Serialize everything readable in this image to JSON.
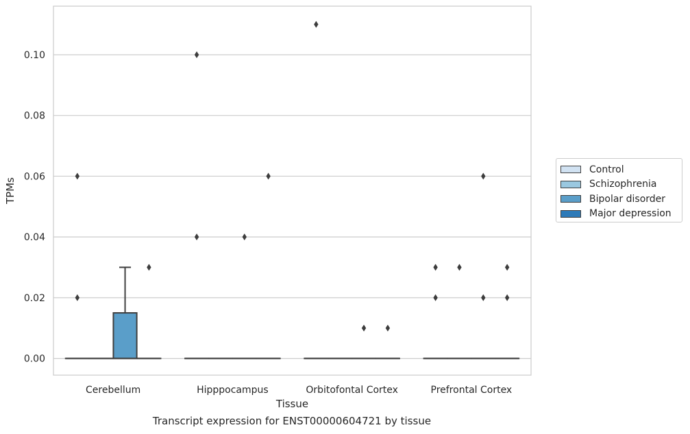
{
  "caption": "Transcript expression for ENST00000604721 by tissue",
  "chart_data": {
    "type": "boxplot",
    "xlabel": "Tissue",
    "ylabel": "TPMs",
    "ylim": [
      -0.0055,
      0.116
    ],
    "yticks": [
      0.0,
      0.02,
      0.04,
      0.06,
      0.08,
      0.1
    ],
    "ytick_labels": [
      "0.00",
      "0.02",
      "0.04",
      "0.06",
      "0.08",
      "0.10"
    ],
    "grid": true,
    "legend_position": "right",
    "categories": [
      "Cerebellum",
      "Hipppocampus",
      "Orbitofontal Cortex",
      "Prefrontal Cortex"
    ],
    "series": [
      {
        "name": "Control",
        "color": "#d1e2f2",
        "boxes": [
          {
            "q1": 0,
            "median": 0,
            "q3": 0,
            "whisker_low": 0,
            "whisker_high": 0,
            "outliers": [
              0.06,
              0.02
            ]
          },
          {
            "q1": 0,
            "median": 0,
            "q3": 0,
            "whisker_low": 0,
            "whisker_high": 0,
            "outliers": [
              0.1,
              0.04
            ]
          },
          {
            "q1": 0,
            "median": 0,
            "q3": 0,
            "whisker_low": 0,
            "whisker_high": 0,
            "outliers": [
              0.11
            ]
          },
          {
            "q1": 0,
            "median": 0,
            "q3": 0,
            "whisker_low": 0,
            "whisker_high": 0,
            "outliers": [
              0.03,
              0.02
            ]
          }
        ]
      },
      {
        "name": "Schizophrenia",
        "color": "#9ac8e0",
        "boxes": [
          {
            "q1": 0,
            "median": 0,
            "q3": 0,
            "whisker_low": 0,
            "whisker_high": 0,
            "outliers": []
          },
          {
            "q1": 0,
            "median": 0,
            "q3": 0,
            "whisker_low": 0,
            "whisker_high": 0,
            "outliers": []
          },
          {
            "q1": 0,
            "median": 0,
            "q3": 0,
            "whisker_low": 0,
            "whisker_high": 0,
            "outliers": []
          },
          {
            "q1": 0,
            "median": 0,
            "q3": 0,
            "whisker_low": 0,
            "whisker_high": 0,
            "outliers": [
              0.03
            ]
          }
        ]
      },
      {
        "name": "Bipolar disorder",
        "color": "#5a9ec9",
        "boxes": [
          {
            "q1": 0,
            "median": 0,
            "q3": 0.015,
            "whisker_low": 0,
            "whisker_high": 0.03,
            "outliers": []
          },
          {
            "q1": 0,
            "median": 0,
            "q3": 0,
            "whisker_low": 0,
            "whisker_high": 0,
            "outliers": [
              0.04
            ]
          },
          {
            "q1": 0,
            "median": 0,
            "q3": 0,
            "whisker_low": 0,
            "whisker_high": 0,
            "outliers": [
              0.01
            ]
          },
          {
            "q1": 0,
            "median": 0,
            "q3": 0,
            "whisker_low": 0,
            "whisker_high": 0,
            "outliers": [
              0.06,
              0.02
            ]
          }
        ]
      },
      {
        "name": "Major depression",
        "color": "#2d7ab8",
        "boxes": [
          {
            "q1": 0,
            "median": 0,
            "q3": 0,
            "whisker_low": 0,
            "whisker_high": 0,
            "outliers": [
              0.03
            ]
          },
          {
            "q1": 0,
            "median": 0,
            "q3": 0,
            "whisker_low": 0,
            "whisker_high": 0,
            "outliers": [
              0.06
            ]
          },
          {
            "q1": 0,
            "median": 0,
            "q3": 0,
            "whisker_low": 0,
            "whisker_high": 0,
            "outliers": [
              0.01
            ]
          },
          {
            "q1": 0,
            "median": 0,
            "q3": 0,
            "whisker_low": 0,
            "whisker_high": 0,
            "outliers": [
              0.03,
              0.02
            ]
          }
        ]
      }
    ]
  }
}
